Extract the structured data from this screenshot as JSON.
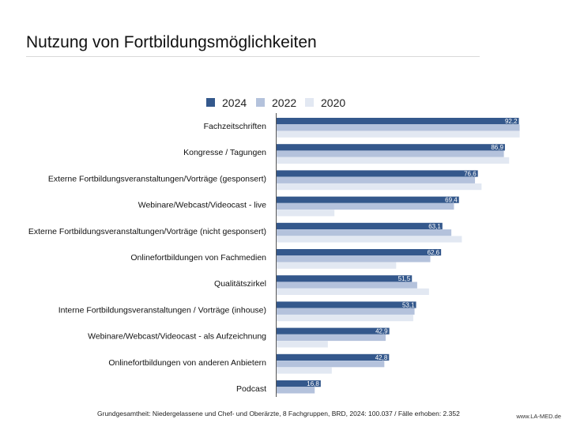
{
  "title": "Nutzung von Fortbildungsmöglichkeiten",
  "footnote": "Grundgesamtheit: Niedergelassene und Chef- und Oberärzte, 8 Fachgruppen, BRD, 2024: 100.037 /  Fälle erhoben: 2.352",
  "credit": "www.LA-MED.de",
  "colors": {
    "2024": "#34588c",
    "2022": "#b4c2dc",
    "2020": "#e2e8f2"
  },
  "chart_data": {
    "type": "bar",
    "orientation": "horizontal",
    "title": "Nutzung von Fortbildungsmöglichkeiten",
    "legend_position": "top",
    "grid": false,
    "xlim": [
      0,
      100
    ],
    "categories": [
      "Fachzeitschriften",
      "Kongresse / Tagungen",
      "Externe Fortbildungsveranstaltungen/Vorträge (gesponsert)",
      "Webinare/Webcast/Videocast - live",
      "Externe Fortbildungsveranstaltungen/Vorträge (nicht gesponsert)",
      "Onlinefortbildungen von Fachmedien",
      "Qualitätszirkel",
      "Interne Fortbildungsveranstaltungen / Vorträge (inhouse)",
      "Webinare/Webcast/Videocast - als Aufzeichnung",
      "Onlinefortbildungen von anderen Anbietern",
      "Podcast"
    ],
    "series": [
      {
        "name": "2024",
        "labeled": true,
        "values": [
          92.2,
          86.9,
          76.6,
          69.4,
          63.1,
          62.6,
          51.5,
          53.1,
          42.9,
          42.8,
          16.8
        ],
        "labels": [
          "92,2",
          "86,9",
          "76,6",
          "69,4",
          "63,1",
          "62,6",
          "51,5",
          "53,1",
          "42,9",
          "42,8",
          "16,8"
        ]
      },
      {
        "name": "2022",
        "labeled": false,
        "values": [
          92.5,
          86.5,
          75.5,
          67.5,
          66.5,
          58.5,
          53.5,
          52.5,
          41.5,
          41.0,
          14.5
        ]
      },
      {
        "name": "2020",
        "labeled": false,
        "values": [
          92.5,
          88.5,
          78.0,
          22.0,
          70.5,
          45.5,
          58.0,
          52.0,
          19.5,
          21.0,
          0
        ]
      }
    ]
  }
}
